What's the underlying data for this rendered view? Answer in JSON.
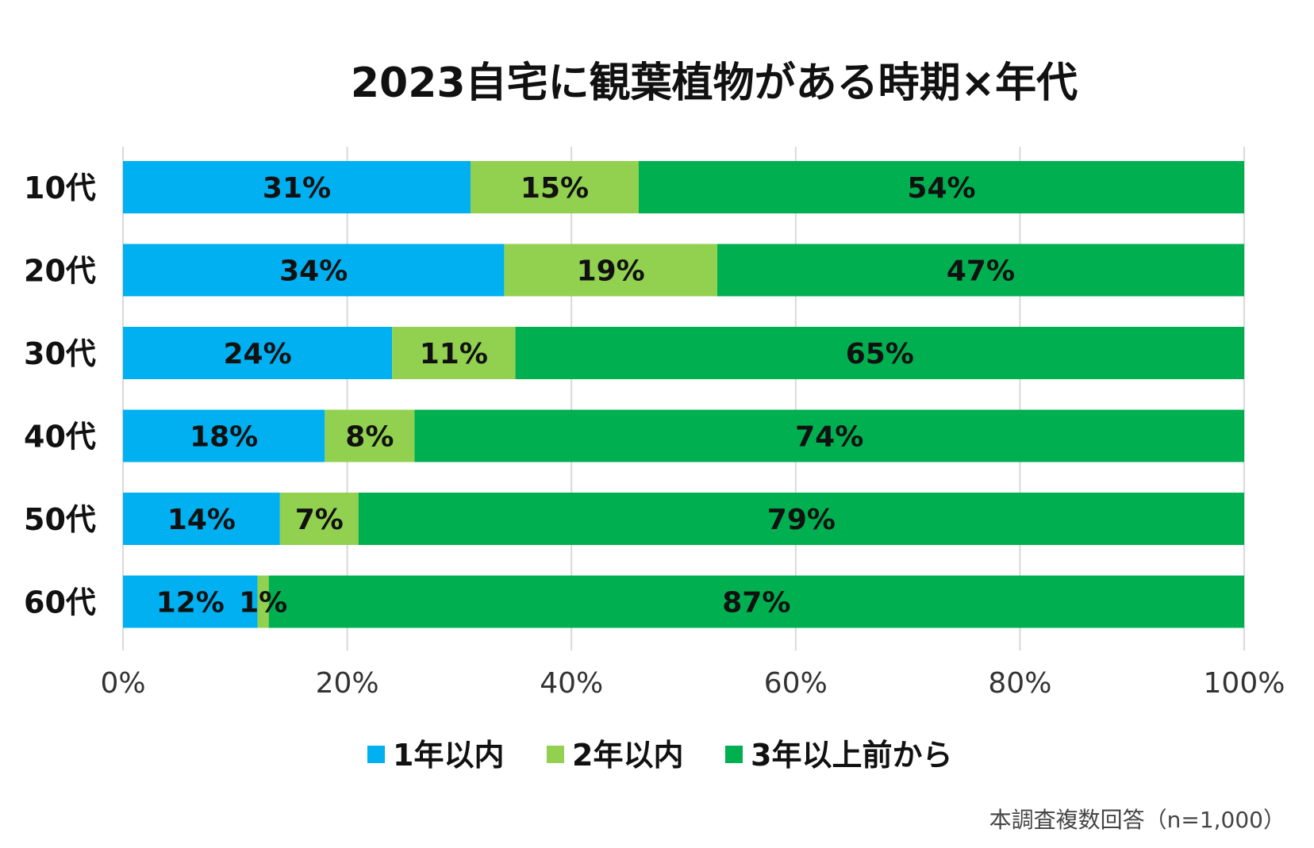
{
  "chart_data": {
    "type": "bar",
    "orientation": "horizontal",
    "stacked": true,
    "title": "2023自宅に観葉植物がある時期×年代",
    "categories": [
      "10代",
      "20代",
      "30代",
      "40代",
      "50代",
      "60代"
    ],
    "series": [
      {
        "name": "1年以内",
        "color": "#00b0f0",
        "values": [
          31,
          34,
          24,
          18,
          14,
          12
        ]
      },
      {
        "name": "2年以内",
        "color": "#92d050",
        "values": [
          15,
          19,
          11,
          8,
          7,
          1
        ]
      },
      {
        "name": "3年以上前から",
        "color": "#00b050",
        "values": [
          54,
          47,
          65,
          74,
          79,
          87
        ]
      }
    ],
    "data_labels": [
      [
        "31%",
        "15%",
        "54%"
      ],
      [
        "34%",
        "19%",
        "47%"
      ],
      [
        "24%",
        "11%",
        "65%"
      ],
      [
        "18%",
        "8%",
        "74%"
      ],
      [
        "14%",
        "7%",
        "79%"
      ],
      [
        "12%",
        "1%",
        "87%"
      ]
    ],
    "xlim": [
      0,
      100
    ],
    "xticks": [
      0,
      20,
      40,
      60,
      80,
      100
    ],
    "xtick_labels": [
      "0%",
      "20%",
      "40%",
      "60%",
      "80%",
      "100%"
    ],
    "grid": true,
    "legend_position": "bottom",
    "footnote": "本調査複数回答（n=1,000）"
  }
}
